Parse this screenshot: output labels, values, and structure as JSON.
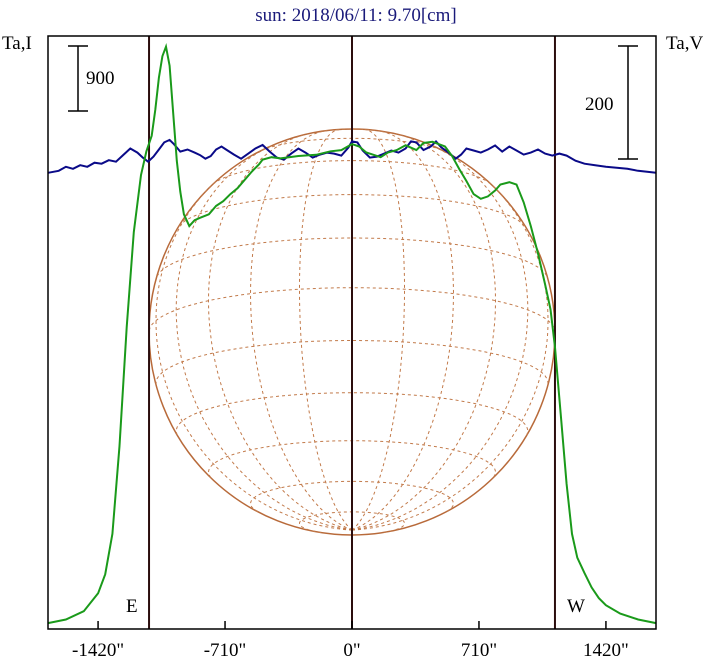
{
  "chart_data": {
    "type": "line",
    "title": "sun: 2018/06/11: 9.70[cm]",
    "left_axis_label": "Ta,I",
    "right_axis_label": "Ta,V",
    "x_unit": "arcsec",
    "xlim": [
      -1700,
      1700
    ],
    "x_ticks": [
      {
        "value": -1420,
        "label": "-1420\""
      },
      {
        "value": -710,
        "label": "-710\""
      },
      {
        "value": 0,
        "label": "0\""
      },
      {
        "value": 710,
        "label": "710\""
      },
      {
        "value": 1420,
        "label": "1420\""
      }
    ],
    "limb_markers": [
      {
        "value": -1135,
        "label": "E"
      },
      {
        "value": 1135,
        "label": "W"
      }
    ],
    "center_marker": 0,
    "solar_radius_arcsec": 1135,
    "scale_bars": [
      {
        "axis": "I",
        "label": "900",
        "value": 900
      },
      {
        "axis": "V",
        "label": "200",
        "value": 200
      }
    ],
    "grid": false,
    "series": [
      {
        "axis": "I",
        "color": "#1a9a1a",
        "ylim": [
          -40,
          4950
        ],
        "points": [
          [
            -1700,
            10
          ],
          [
            -1600,
            40
          ],
          [
            -1500,
            110
          ],
          [
            -1420,
            260
          ],
          [
            -1380,
            420
          ],
          [
            -1340,
            760
          ],
          [
            -1300,
            1500
          ],
          [
            -1260,
            2500
          ],
          [
            -1220,
            3300
          ],
          [
            -1180,
            3780
          ],
          [
            -1150,
            3980
          ],
          [
            -1120,
            4110
          ],
          [
            -1100,
            4330
          ],
          [
            -1080,
            4600
          ],
          [
            -1060,
            4780
          ],
          [
            -1040,
            4860
          ],
          [
            -1020,
            4700
          ],
          [
            -1000,
            4300
          ],
          [
            -980,
            3900
          ],
          [
            -960,
            3640
          ],
          [
            -940,
            3450
          ],
          [
            -910,
            3350
          ],
          [
            -880,
            3400
          ],
          [
            -850,
            3420
          ],
          [
            -800,
            3450
          ],
          [
            -760,
            3520
          ],
          [
            -720,
            3560
          ],
          [
            -680,
            3620
          ],
          [
            -640,
            3670
          ],
          [
            -600,
            3740
          ],
          [
            -560,
            3810
          ],
          [
            -520,
            3870
          ],
          [
            -500,
            3910
          ],
          [
            -450,
            3930
          ],
          [
            -400,
            3920
          ],
          [
            -300,
            3940
          ],
          [
            -200,
            3950
          ],
          [
            -120,
            3980
          ],
          [
            -60,
            3990
          ],
          [
            0,
            4040
          ],
          [
            40,
            4020
          ],
          [
            80,
            3970
          ],
          [
            120,
            3950
          ],
          [
            160,
            3930
          ],
          [
            200,
            3970
          ],
          [
            250,
            3990
          ],
          [
            300,
            4030
          ],
          [
            330,
            4010
          ],
          [
            360,
            3990
          ],
          [
            400,
            4050
          ],
          [
            450,
            4060
          ],
          [
            520,
            4020
          ],
          [
            560,
            3940
          ],
          [
            600,
            3830
          ],
          [
            640,
            3730
          ],
          [
            680,
            3620
          ],
          [
            720,
            3580
          ],
          [
            760,
            3600
          ],
          [
            800,
            3650
          ],
          [
            830,
            3700
          ],
          [
            880,
            3720
          ],
          [
            920,
            3700
          ],
          [
            960,
            3550
          ],
          [
            1000,
            3350
          ],
          [
            1040,
            3120
          ],
          [
            1080,
            2860
          ],
          [
            1110,
            2650
          ],
          [
            1135,
            2330
          ],
          [
            1170,
            1720
          ],
          [
            1200,
            1180
          ],
          [
            1230,
            760
          ],
          [
            1260,
            560
          ],
          [
            1300,
            430
          ],
          [
            1340,
            310
          ],
          [
            1380,
            220
          ],
          [
            1420,
            160
          ],
          [
            1500,
            90
          ],
          [
            1600,
            40
          ],
          [
            1700,
            10
          ]
        ]
      },
      {
        "axis": "V",
        "color": "#0a0a88",
        "ylim": [
          -900,
          270
        ],
        "points": [
          [
            -1700,
            0
          ],
          [
            -1640,
            4
          ],
          [
            -1600,
            12
          ],
          [
            -1560,
            8
          ],
          [
            -1520,
            15
          ],
          [
            -1480,
            12
          ],
          [
            -1440,
            20
          ],
          [
            -1400,
            18
          ],
          [
            -1360,
            25
          ],
          [
            -1320,
            22
          ],
          [
            -1280,
            35
          ],
          [
            -1240,
            48
          ],
          [
            -1200,
            40
          ],
          [
            -1170,
            30
          ],
          [
            -1140,
            22
          ],
          [
            -1110,
            32
          ],
          [
            -1080,
            46
          ],
          [
            -1050,
            60
          ],
          [
            -1020,
            65
          ],
          [
            -1000,
            58
          ],
          [
            -980,
            50
          ],
          [
            -960,
            42
          ],
          [
            -920,
            46
          ],
          [
            -880,
            40
          ],
          [
            -850,
            35
          ],
          [
            -820,
            28
          ],
          [
            -790,
            33
          ],
          [
            -760,
            46
          ],
          [
            -730,
            52
          ],
          [
            -700,
            45
          ],
          [
            -660,
            36
          ],
          [
            -620,
            28
          ],
          [
            -580,
            38
          ],
          [
            -540,
            48
          ],
          [
            -500,
            55
          ],
          [
            -460,
            42
          ],
          [
            -420,
            30
          ],
          [
            -380,
            26
          ],
          [
            -340,
            38
          ],
          [
            -300,
            48
          ],
          [
            -260,
            40
          ],
          [
            -220,
            30
          ],
          [
            -180,
            36
          ],
          [
            -140,
            40
          ],
          [
            -100,
            38
          ],
          [
            -60,
            34
          ],
          [
            -20,
            50
          ],
          [
            0,
            62
          ],
          [
            30,
            60
          ],
          [
            60,
            44
          ],
          [
            100,
            30
          ],
          [
            140,
            32
          ],
          [
            180,
            38
          ],
          [
            220,
            44
          ],
          [
            260,
            40
          ],
          [
            300,
            48
          ],
          [
            330,
            62
          ],
          [
            360,
            60
          ],
          [
            400,
            45
          ],
          [
            440,
            52
          ],
          [
            470,
            62
          ],
          [
            500,
            50
          ],
          [
            540,
            40
          ],
          [
            580,
            28
          ],
          [
            610,
            36
          ],
          [
            640,
            48
          ],
          [
            680,
            44
          ],
          [
            720,
            40
          ],
          [
            760,
            46
          ],
          [
            800,
            54
          ],
          [
            840,
            42
          ],
          [
            880,
            52
          ],
          [
            920,
            44
          ],
          [
            960,
            36
          ],
          [
            1000,
            40
          ],
          [
            1040,
            46
          ],
          [
            1080,
            38
          ],
          [
            1120,
            34
          ],
          [
            1160,
            38
          ],
          [
            1200,
            34
          ],
          [
            1250,
            24
          ],
          [
            1300,
            18
          ],
          [
            1360,
            15
          ],
          [
            1420,
            12
          ],
          [
            1480,
            10
          ],
          [
            1540,
            8
          ],
          [
            1600,
            4
          ],
          [
            1700,
            0
          ]
        ]
      }
    ]
  }
}
